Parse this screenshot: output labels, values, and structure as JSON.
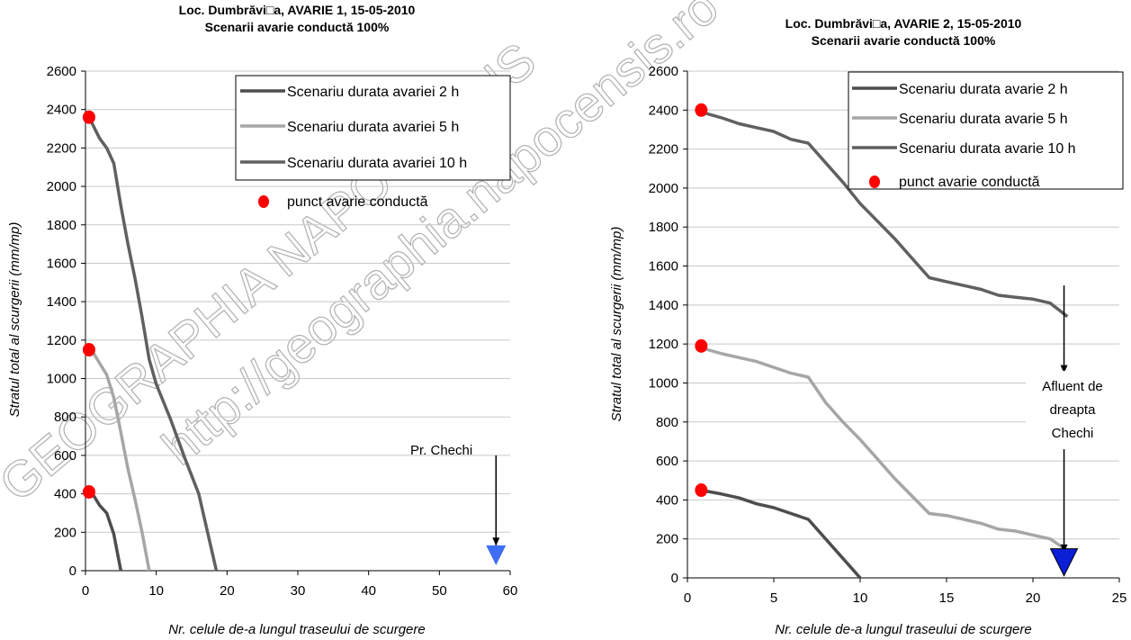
{
  "watermark": {
    "line1": "GEOGRAPHIA NAPOCENSIS",
    "line2": "http://geographia.napocensis.ro"
  },
  "chart_data": [
    {
      "type": "line",
      "title": "Loc. Dumbrăvi□a, AVARIE 1, 15-05-2010",
      "subtitle": "Scenarii avarie conductă 100%",
      "xlabel": "Nr. celule de-a lungul traseului de scurgere",
      "ylabel": "Stratul total al scurgerii (mm/mp)",
      "xlim": [
        0,
        60
      ],
      "ylim": [
        0,
        2600
      ],
      "xticks": [
        0,
        10,
        20,
        30,
        40,
        50,
        60
      ],
      "yticks": [
        0,
        200,
        400,
        600,
        800,
        1000,
        1200,
        1400,
        1600,
        1800,
        2000,
        2200,
        2400,
        2600
      ],
      "grid": "horizontal",
      "legend_position": "top-right",
      "series": [
        {
          "name": "Scenariu durata avariei 2 h",
          "color": "#4d4d4d",
          "points": [
            [
              0.5,
              410
            ],
            [
              1,
              400
            ],
            [
              2,
              340
            ],
            [
              3,
              300
            ],
            [
              4,
              190
            ],
            [
              5,
              0
            ]
          ]
        },
        {
          "name": "Scenariu durata avariei 5 h",
          "color": "#a6a6a6",
          "points": [
            [
              0.5,
              1150
            ],
            [
              1,
              1140
            ],
            [
              2,
              1080
            ],
            [
              3,
              1020
            ],
            [
              4,
              900
            ],
            [
              5,
              720
            ],
            [
              6,
              530
            ],
            [
              7,
              370
            ],
            [
              8,
              200
            ],
            [
              9,
              0
            ]
          ]
        },
        {
          "name": "Scenariu durata avariei 10 h",
          "color": "#606060",
          "points": [
            [
              0.5,
              2360
            ],
            [
              2,
              2250
            ],
            [
              3,
              2200
            ],
            [
              4,
              2120
            ],
            [
              5,
              1900
            ],
            [
              6,
              1700
            ],
            [
              7,
              1520
            ],
            [
              8,
              1320
            ],
            [
              9,
              1100
            ],
            [
              10,
              970
            ],
            [
              12,
              790
            ],
            [
              14,
              590
            ],
            [
              16,
              400
            ],
            [
              18.5,
              0
            ]
          ]
        }
      ],
      "markers": {
        "name": "punct avarie conductă",
        "color": "#ff0000",
        "points": [
          [
            0.5,
            410
          ],
          [
            0.5,
            1150
          ],
          [
            0.5,
            2360
          ]
        ]
      },
      "annotation": {
        "text": "Pr. Chechi",
        "arrow_from": [
          58,
          600
        ],
        "arrow_to": [
          58,
          130
        ],
        "triangle_at": [
          58,
          80
        ],
        "triangle_color": "#3d6ef5"
      }
    },
    {
      "type": "line",
      "title": "Loc. Dumbrăvi□a, AVARIE 2, 15-05-2010",
      "subtitle": "Scenarii avarie conductă 100%",
      "xlabel": "Nr. celule de-a lungul traseului de scurgere",
      "ylabel": "Stratul total al scurgerii (mm/mp)",
      "xlim": [
        0,
        25
      ],
      "ylim": [
        0,
        2600
      ],
      "xticks": [
        0,
        5,
        10,
        15,
        20,
        25
      ],
      "yticks": [
        0,
        200,
        400,
        600,
        800,
        1000,
        1200,
        1400,
        1600,
        1800,
        2000,
        2200,
        2400,
        2600
      ],
      "grid": "horizontal",
      "legend_position": "top-right",
      "series": [
        {
          "name": "Scenariu durata avarie 2 h",
          "color": "#4d4d4d",
          "points": [
            [
              0.8,
              450
            ],
            [
              2,
              430
            ],
            [
              3,
              410
            ],
            [
              4,
              380
            ],
            [
              5,
              360
            ],
            [
              6,
              330
            ],
            [
              7,
              300
            ],
            [
              8,
              200
            ],
            [
              9,
              100
            ],
            [
              10,
              0
            ]
          ]
        },
        {
          "name": "Scenariu durata avarie 5 h",
          "color": "#a6a6a6",
          "points": [
            [
              0.8,
              1180
            ],
            [
              2,
              1150
            ],
            [
              3,
              1130
            ],
            [
              4,
              1110
            ],
            [
              5,
              1080
            ],
            [
              6,
              1050
            ],
            [
              7,
              1030
            ],
            [
              8,
              900
            ],
            [
              9,
              800
            ],
            [
              10,
              710
            ],
            [
              11,
              610
            ],
            [
              12,
              510
            ],
            [
              13,
              420
            ],
            [
              14,
              330
            ],
            [
              15,
              320
            ],
            [
              16,
              300
            ],
            [
              17,
              280
            ],
            [
              18,
              250
            ],
            [
              19,
              240
            ],
            [
              20,
              220
            ],
            [
              21,
              200
            ],
            [
              22,
              140
            ]
          ]
        },
        {
          "name": "Scenariu durata avarie 10 h",
          "color": "#606060",
          "points": [
            [
              0.8,
              2390
            ],
            [
              2,
              2360
            ],
            [
              3,
              2330
            ],
            [
              4,
              2310
            ],
            [
              5,
              2290
            ],
            [
              6,
              2250
            ],
            [
              7,
              2230
            ],
            [
              8,
              2130
            ],
            [
              9,
              2030
            ],
            [
              10,
              1920
            ],
            [
              11,
              1830
            ],
            [
              12,
              1740
            ],
            [
              13,
              1640
            ],
            [
              14,
              1540
            ],
            [
              15,
              1520
            ],
            [
              16,
              1500
            ],
            [
              17,
              1480
            ],
            [
              18,
              1450
            ],
            [
              19,
              1440
            ],
            [
              20,
              1430
            ],
            [
              21,
              1410
            ],
            [
              22,
              1340
            ]
          ]
        }
      ],
      "markers": {
        "name": "punct avarie conductă",
        "color": "#ff0000",
        "points": [
          [
            0.8,
            450
          ],
          [
            0.8,
            1190
          ],
          [
            0.8,
            2400
          ]
        ]
      },
      "annotation": {
        "lines": [
          "Afluent de",
          "dreapta",
          "Chechi"
        ],
        "arrow_top_from": [
          21.8,
          1500
        ],
        "arrow_top_to": [
          21.8,
          1050
        ],
        "arrow_from": [
          21.8,
          660
        ],
        "arrow_to": [
          21.8,
          130
        ],
        "triangle_at": [
          21.8,
          80
        ],
        "triangle_color": "#0a1fd6"
      }
    }
  ]
}
